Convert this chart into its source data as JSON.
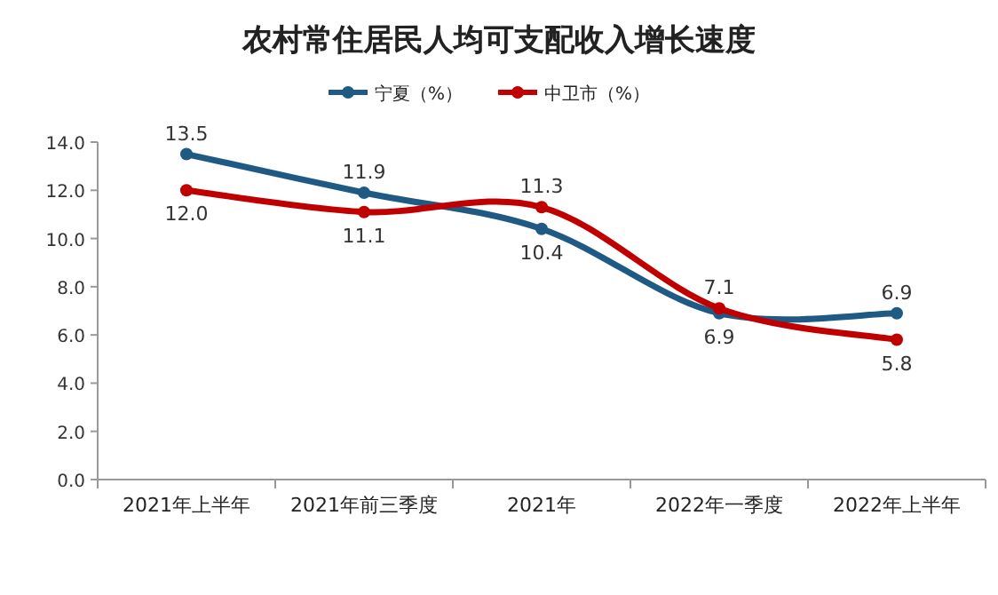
{
  "chart_data": {
    "type": "line",
    "title": "农村常住居民人均可支配收入增长速度",
    "categories": [
      "2021年上半年",
      "2021年前三季度",
      "2021年",
      "2022年一季度",
      "2022年上半年"
    ],
    "series": [
      {
        "name": "宁夏（%）",
        "color": "#1f5a85",
        "values": [
          13.5,
          11.9,
          10.4,
          6.9,
          6.9
        ],
        "value_labels": [
          "13.5",
          "11.9",
          "10.4",
          "6.9",
          "6.9"
        ]
      },
      {
        "name": "中卫市（%）",
        "color": "#c00000",
        "values": [
          12.0,
          11.1,
          11.3,
          7.1,
          5.8
        ],
        "value_labels": [
          "12.0",
          "11.1",
          "11.3",
          "7.1",
          "5.8"
        ]
      }
    ],
    "ylim": [
      0,
      14
    ],
    "yticks": [
      {
        "value": 0,
        "label": "0.0"
      },
      {
        "value": 2,
        "label": "2.0"
      },
      {
        "value": 4,
        "label": "4.0"
      },
      {
        "value": 6,
        "label": "6.0"
      },
      {
        "value": 8,
        "label": "8.0"
      },
      {
        "value": 10,
        "label": "10.0"
      },
      {
        "value": 12,
        "label": "12.0"
      },
      {
        "value": 14,
        "label": "14.0"
      }
    ],
    "legend": "top",
    "marker": "circle",
    "grid": false
  }
}
